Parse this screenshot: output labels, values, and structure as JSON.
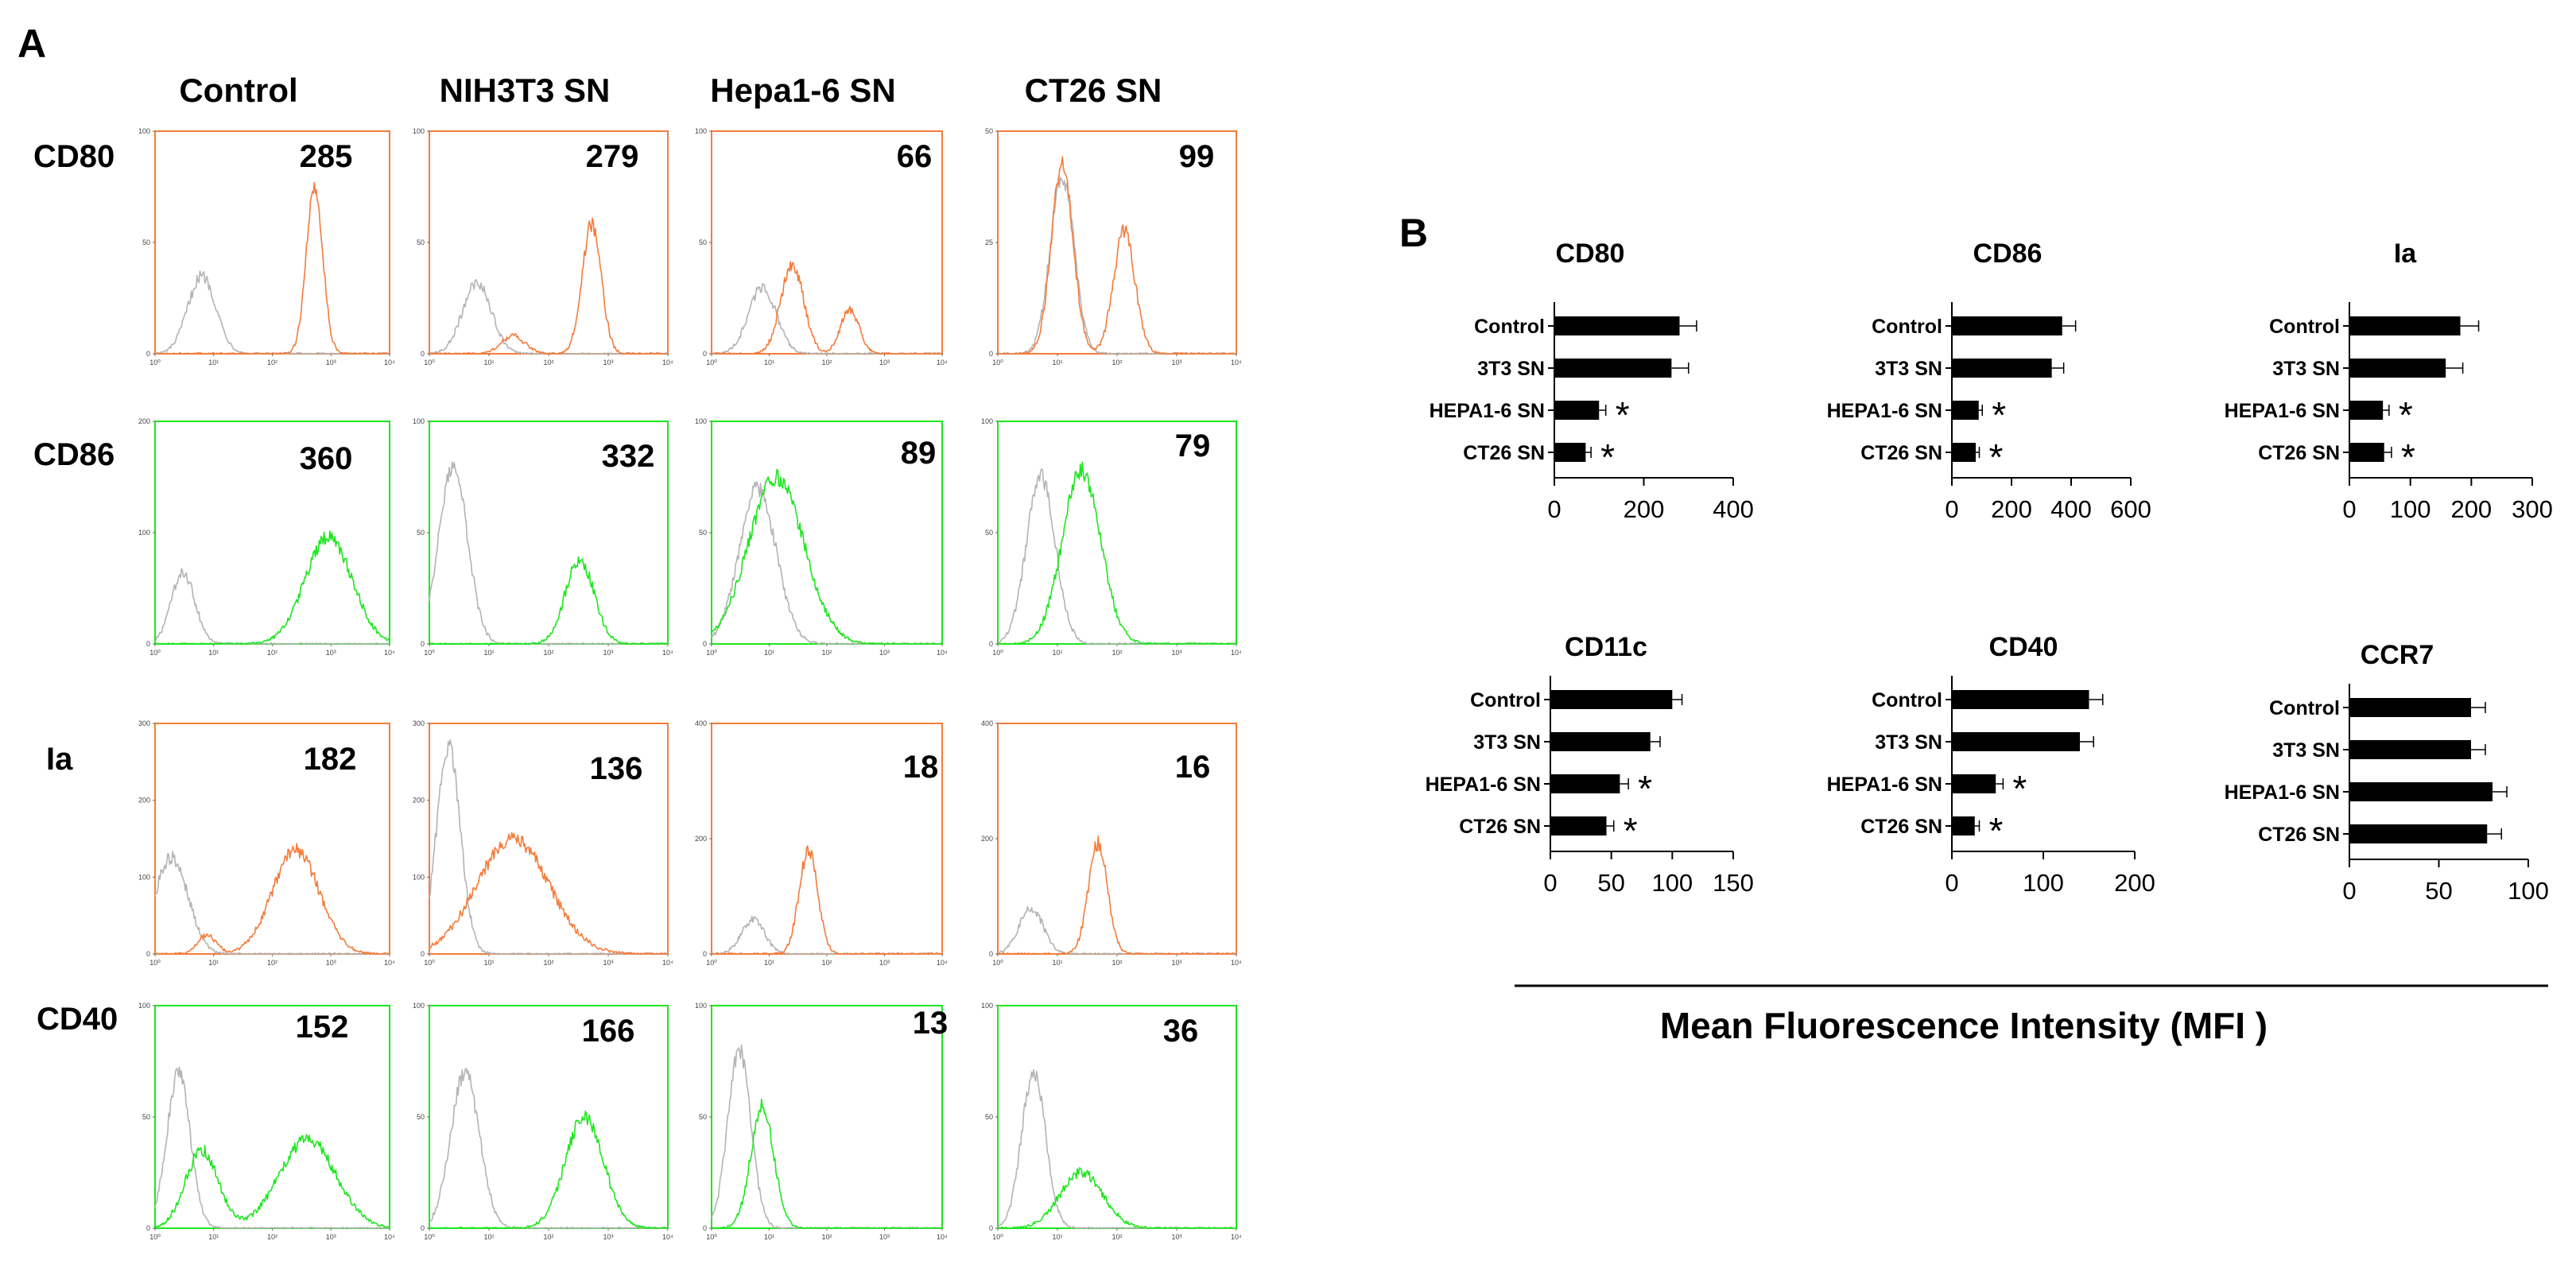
{
  "panel_a_label": "A",
  "panel_b_label": "B",
  "colors": {
    "orange": "#f47c3c",
    "green": "#1fe61f",
    "gray": "#b4b4b4",
    "bar": "#000000"
  },
  "chart_data": [
    {
      "type": "histogram-grid",
      "panel": "A",
      "columns": [
        "Control",
        "NIH3T3  SN",
        "Hepa1-6 SN",
        "CT26  SN"
      ],
      "x_axis_ticks": [
        "10⁰",
        "10¹",
        "10²",
        "10³",
        "10⁴"
      ],
      "rows": [
        {
          "marker": "CD80",
          "color": "orange",
          "cells": [
            {
              "mfi": "285",
              "ymax": "100",
              "ytick_labels": [
                "100",
                "50",
                "0"
              ],
              "peaks": [
                {
                  "pos": 0.2,
                  "height": 0.35,
                  "width": 0.06,
                  "series": "gray"
                },
                {
                  "pos": 0.68,
                  "height": 0.75,
                  "width": 0.035,
                  "series": "stain"
                }
              ]
            },
            {
              "mfi": "279",
              "ymax": "100",
              "ytick_labels": [
                "100",
                "50",
                "0"
              ],
              "peaks": [
                {
                  "pos": 0.2,
                  "height": 0.32,
                  "width": 0.06,
                  "series": "gray"
                },
                {
                  "pos": 0.35,
                  "height": 0.08,
                  "width": 0.05,
                  "series": "stain"
                },
                {
                  "pos": 0.68,
                  "height": 0.58,
                  "width": 0.04,
                  "series": "stain"
                }
              ]
            },
            {
              "mfi": "66",
              "ymax": "100",
              "ytick_labels": [
                "100",
                "50",
                "0"
              ],
              "peaks": [
                {
                  "pos": 0.22,
                  "height": 0.3,
                  "width": 0.06,
                  "series": "gray"
                },
                {
                  "pos": 0.35,
                  "height": 0.4,
                  "width": 0.05,
                  "series": "stain"
                },
                {
                  "pos": 0.6,
                  "height": 0.2,
                  "width": 0.04,
                  "series": "stain"
                }
              ]
            },
            {
              "mfi": "99",
              "ymax": "50",
              "ytick_labels": [
                "50",
                "25",
                "0"
              ],
              "peaks": [
                {
                  "pos": 0.27,
                  "height": 0.8,
                  "width": 0.05,
                  "series": "gray"
                },
                {
                  "pos": 0.27,
                  "height": 0.85,
                  "width": 0.045,
                  "series": "stain"
                },
                {
                  "pos": 0.53,
                  "height": 0.55,
                  "width": 0.045,
                  "series": "stain"
                }
              ]
            }
          ]
        },
        {
          "marker": "CD86",
          "color": "green",
          "cells": [
            {
              "mfi": "360",
              "ymax": "200",
              "ytick_labels": [
                "200",
                "100",
                "0"
              ],
              "peaks": [
                {
                  "pos": 0.12,
                  "height": 0.32,
                  "width": 0.05,
                  "series": "gray"
                },
                {
                  "pos": 0.74,
                  "height": 0.48,
                  "width": 0.1,
                  "series": "stain"
                }
              ]
            },
            {
              "mfi": "332",
              "ymax": "100",
              "ytick_labels": [
                "100",
                "50",
                "0"
              ],
              "peaks": [
                {
                  "pos": 0.1,
                  "height": 0.8,
                  "width": 0.06,
                  "series": "gray"
                },
                {
                  "pos": 0.63,
                  "height": 0.38,
                  "width": 0.06,
                  "series": "stain"
                }
              ]
            },
            {
              "mfi": "89",
              "ymax": "100",
              "ytick_labels": [
                "100",
                "50",
                "0"
              ],
              "peaks": [
                {
                  "pos": 0.2,
                  "height": 0.7,
                  "width": 0.08,
                  "series": "gray"
                },
                {
                  "pos": 0.28,
                  "height": 0.75,
                  "width": 0.12,
                  "series": "stain"
                }
              ]
            },
            {
              "mfi": "79",
              "ymax": "100",
              "ytick_labels": [
                "100",
                "50",
                "0"
              ],
              "peaks": [
                {
                  "pos": 0.18,
                  "height": 0.75,
                  "width": 0.06,
                  "series": "gray"
                },
                {
                  "pos": 0.35,
                  "height": 0.78,
                  "width": 0.08,
                  "series": "stain"
                }
              ]
            }
          ]
        },
        {
          "marker": "Ia",
          "color": "orange",
          "cells": [
            {
              "mfi": "182",
              "ymax": "300",
              "ytick_labels": [
                "300",
                "200",
                "100",
                "0"
              ],
              "peaks": [
                {
                  "pos": 0.07,
                  "height": 0.42,
                  "width": 0.07,
                  "series": "gray"
                },
                {
                  "pos": 0.22,
                  "height": 0.08,
                  "width": 0.04,
                  "series": "stain"
                },
                {
                  "pos": 0.6,
                  "height": 0.45,
                  "width": 0.1,
                  "series": "stain"
                }
              ]
            },
            {
              "mfi": "136",
              "ymax": "300",
              "ytick_labels": [
                "300",
                "200",
                "100",
                "0"
              ],
              "peaks": [
                {
                  "pos": 0.08,
                  "height": 0.9,
                  "width": 0.05,
                  "series": "gray"
                },
                {
                  "pos": 0.35,
                  "height": 0.5,
                  "width": 0.15,
                  "series": "stain"
                }
              ]
            },
            {
              "mfi": "18",
              "ymax": "400",
              "ytick_labels": [
                "400",
                "200",
                "0"
              ],
              "peaks": [
                {
                  "pos": 0.18,
                  "height": 0.15,
                  "width": 0.05,
                  "series": "gray"
                },
                {
                  "pos": 0.42,
                  "height": 0.45,
                  "width": 0.04,
                  "series": "stain"
                }
              ]
            },
            {
              "mfi": "16",
              "ymax": "400",
              "ytick_labels": [
                "400",
                "200",
                "0"
              ],
              "peaks": [
                {
                  "pos": 0.14,
                  "height": 0.2,
                  "width": 0.05,
                  "series": "gray"
                },
                {
                  "pos": 0.42,
                  "height": 0.48,
                  "width": 0.04,
                  "series": "stain"
                }
              ]
            }
          ]
        },
        {
          "marker": "CD40",
          "color": "green",
          "cells": [
            {
              "mfi": "152",
              "ymax": "100",
              "ytick_labels": [
                "100",
                "50",
                "0"
              ],
              "peaks": [
                {
                  "pos": 0.1,
                  "height": 0.7,
                  "width": 0.05,
                  "series": "gray"
                },
                {
                  "pos": 0.2,
                  "height": 0.35,
                  "width": 0.07,
                  "series": "stain"
                },
                {
                  "pos": 0.65,
                  "height": 0.4,
                  "width": 0.12,
                  "series": "stain"
                }
              ]
            },
            {
              "mfi": "166",
              "ymax": "100",
              "ytick_labels": [
                "100",
                "50",
                "0"
              ],
              "peaks": [
                {
                  "pos": 0.15,
                  "height": 0.7,
                  "width": 0.06,
                  "series": "gray"
                },
                {
                  "pos": 0.65,
                  "height": 0.5,
                  "width": 0.08,
                  "series": "stain"
                }
              ]
            },
            {
              "mfi": "13",
              "ymax": "100",
              "ytick_labels": [
                "100",
                "50",
                "0"
              ],
              "peaks": [
                {
                  "pos": 0.12,
                  "height": 0.8,
                  "width": 0.05,
                  "series": "gray"
                },
                {
                  "pos": 0.22,
                  "height": 0.55,
                  "width": 0.05,
                  "series": "stain"
                }
              ]
            },
            {
              "mfi": "36",
              "ymax": "100",
              "ytick_labels": [
                "100",
                "50",
                "0"
              ],
              "peaks": [
                {
                  "pos": 0.15,
                  "height": 0.7,
                  "width": 0.05,
                  "series": "gray"
                },
                {
                  "pos": 0.35,
                  "height": 0.25,
                  "width": 0.09,
                  "series": "stain"
                }
              ]
            }
          ]
        }
      ]
    },
    {
      "type": "bar",
      "orientation": "horizontal",
      "panel": "B",
      "title": "CD80",
      "categories": [
        "Control",
        "3T3 SN",
        "HEPA1-6 SN",
        "CT26 SN"
      ],
      "values": [
        280,
        262,
        100,
        70
      ],
      "errors": [
        38,
        38,
        15,
        12
      ],
      "significant": [
        false,
        false,
        true,
        true
      ],
      "xlim": [
        0,
        400
      ],
      "xticks": [
        "0",
        "200",
        "400"
      ]
    },
    {
      "type": "bar",
      "orientation": "horizontal",
      "panel": "B",
      "title": "CD86",
      "categories": [
        "Control",
        "3T3 SN",
        "HEPA1-6 SN",
        "CT26 SN"
      ],
      "values": [
        370,
        335,
        90,
        80
      ],
      "errors": [
        45,
        40,
        12,
        12
      ],
      "significant": [
        false,
        false,
        true,
        true
      ],
      "xlim": [
        0,
        600
      ],
      "xticks": [
        "0",
        "200",
        "400",
        "600"
      ]
    },
    {
      "type": "bar",
      "orientation": "horizontal",
      "panel": "B",
      "title": "Ia",
      "categories": [
        "Control",
        "3T3 SN",
        "HEPA1-6 SN",
        "CT26 SN"
      ],
      "values": [
        182,
        158,
        55,
        57
      ],
      "errors": [
        30,
        28,
        10,
        12
      ],
      "significant": [
        false,
        false,
        true,
        true
      ],
      "xlim": [
        0,
        300
      ],
      "xticks": [
        "0",
        "100",
        "200",
        "300"
      ]
    },
    {
      "type": "bar",
      "orientation": "horizontal",
      "panel": "B",
      "title": "CD11c",
      "categories": [
        "Control",
        "3T3 SN",
        "HEPA1-6 SN",
        "CT26 SN"
      ],
      "values": [
        100,
        82,
        57,
        46
      ],
      "errors": [
        8,
        8,
        7,
        6
      ],
      "significant": [
        false,
        false,
        true,
        true
      ],
      "xlim": [
        0,
        150
      ],
      "xticks": [
        "0",
        "50",
        "100",
        "150"
      ]
    },
    {
      "type": "bar",
      "orientation": "horizontal",
      "panel": "B",
      "title": "CD40",
      "categories": [
        "Control",
        "3T3 SN",
        "HEPA1-6 SN",
        "CT26 SN"
      ],
      "values": [
        150,
        140,
        48,
        25
      ],
      "errors": [
        15,
        15,
        8,
        5
      ],
      "significant": [
        false,
        false,
        true,
        true
      ],
      "xlim": [
        0,
        200
      ],
      "xticks": [
        "0",
        "100",
        "200"
      ]
    },
    {
      "type": "bar",
      "orientation": "horizontal",
      "panel": "B",
      "title": "CCR7",
      "categories": [
        "Control",
        "3T3 SN",
        "HEPA1-6 SN",
        "CT26 SN"
      ],
      "values": [
        68,
        68,
        80,
        77
      ],
      "errors": [
        8,
        8,
        8,
        8
      ],
      "significant": [
        false,
        false,
        false,
        false
      ],
      "xlim": [
        0,
        100
      ],
      "xticks": [
        "0",
        "50",
        "100"
      ]
    }
  ],
  "shared_xlabel": "Mean Fluorescence Intensity (MFI )"
}
